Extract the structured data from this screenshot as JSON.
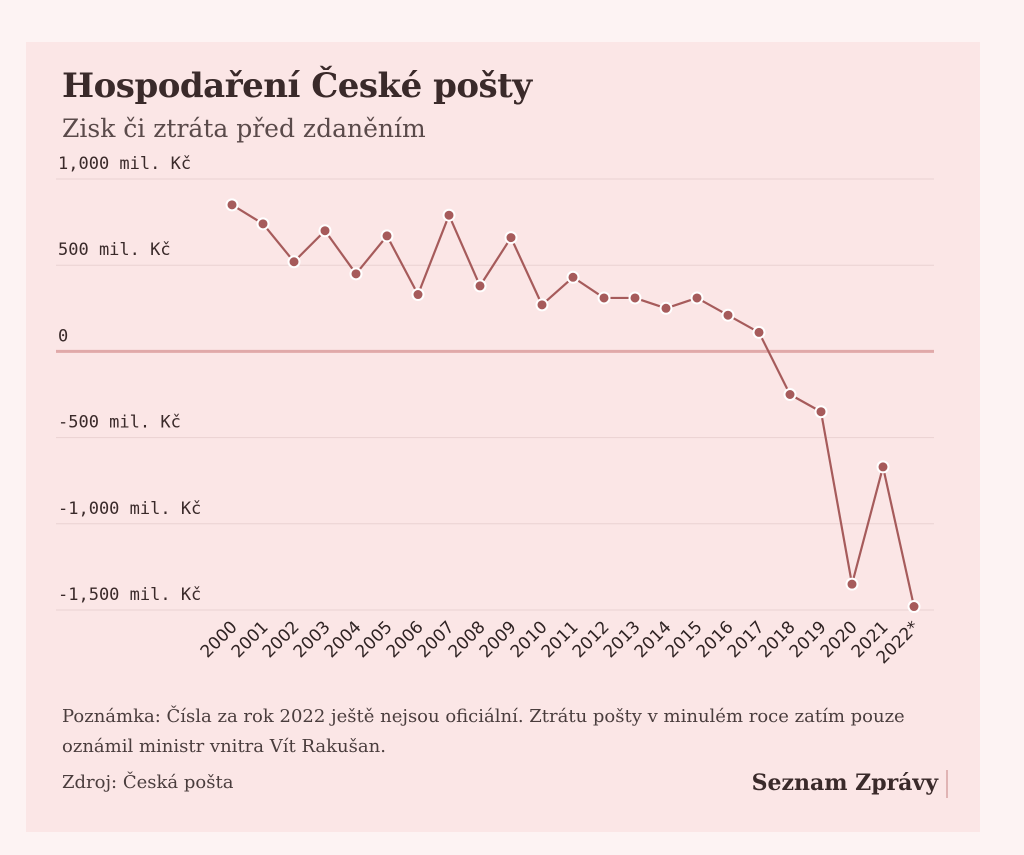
{
  "title": "Hospodaření České pošty",
  "subtitle": "Zisk či ztráta před zdaněním",
  "note": "Poznámka: Čísla za rok 2022 ještě nejsou oficiální. Ztrátu pošty v minulém roce zatím pouze oznámil ministr vnitra Vít Rakušan.",
  "source": "Zdroj: Česká pošta",
  "brand": "Seznam Zprávy",
  "colors": {
    "line": "#a65b5b",
    "zero_line": "#e0a9a9",
    "grid": "#ead2d2",
    "point_stroke": "#ffffff"
  },
  "chart_data": {
    "type": "line",
    "title": "Hospodaření České pošty",
    "subtitle": "Zisk či ztráta před zdaněním",
    "xlabel": "",
    "ylabel": "",
    "categories": [
      "2000",
      "2001",
      "2002",
      "2003",
      "2004",
      "2005",
      "2006",
      "2007",
      "2008",
      "2009",
      "2010",
      "2011",
      "2012",
      "2013",
      "2014",
      "2015",
      "2016",
      "2017",
      "2018",
      "2019",
      "2020",
      "2021",
      "2022*"
    ],
    "series": [
      {
        "name": "",
        "values": [
          850,
          740,
          520,
          700,
          450,
          670,
          330,
          790,
          380,
          660,
          270,
          430,
          310,
          310,
          250,
          310,
          210,
          110,
          -250,
          -350,
          -1350,
          -670,
          -1480
        ]
      }
    ],
    "ylim": [
      -1500,
      1000
    ],
    "yticks": [
      {
        "value": 1000,
        "label": "1,000 mil. Kč"
      },
      {
        "value": 500,
        "label": "500 mil. Kč"
      },
      {
        "value": 0,
        "label": "0"
      },
      {
        "value": -500,
        "label": "-500 mil. Kč"
      },
      {
        "value": -1000,
        "label": "-1,000 mil. Kč"
      },
      {
        "value": -1500,
        "label": "-1,500 mil. Kč"
      }
    ],
    "grid": true,
    "legend": "none"
  }
}
